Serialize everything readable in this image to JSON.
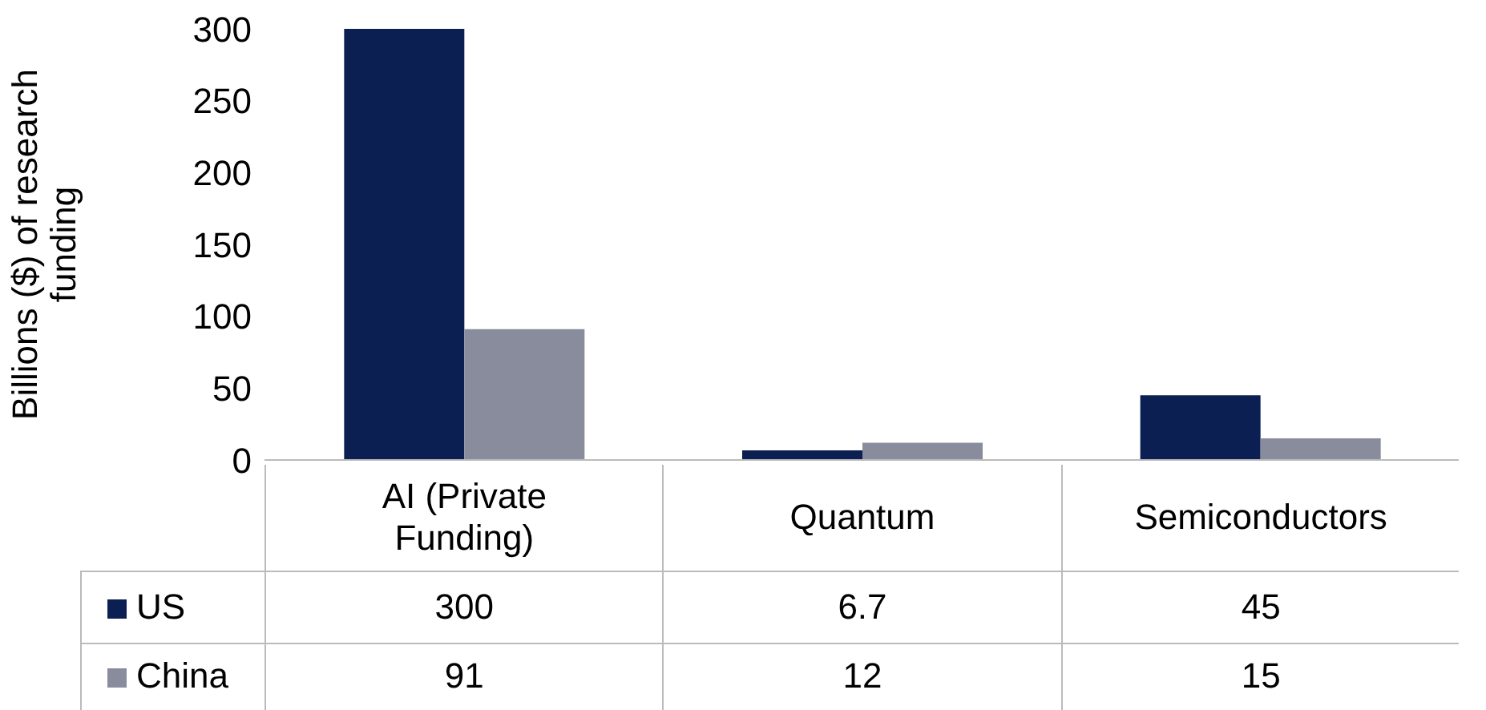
{
  "chart_data": {
    "type": "bar",
    "ylabel": "Billions ($) of research funding",
    "categories": [
      "AI (Private Funding)",
      "Quantum",
      "Semiconductors"
    ],
    "series": [
      {
        "name": "US",
        "color": "#0b1f52",
        "values": [
          300,
          6.7,
          45
        ]
      },
      {
        "name": "China",
        "color": "#898c9c",
        "values": [
          91,
          12,
          15
        ]
      }
    ],
    "ylim": [
      0,
      300
    ],
    "yticks": [
      0,
      50,
      100,
      150,
      200,
      250,
      300
    ],
    "grid": false,
    "legend": "bottom",
    "data_labels": true
  }
}
